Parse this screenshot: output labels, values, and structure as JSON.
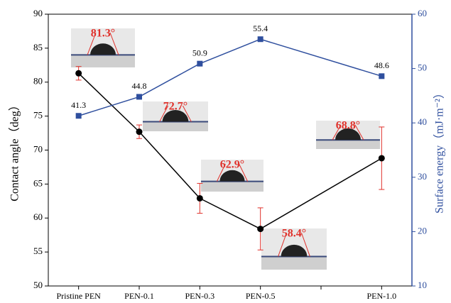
{
  "chart_data": {
    "type": "line",
    "categories": [
      "Pristine PEN",
      "PEN-0.1",
      "PEN-0.3",
      "PEN-0.5",
      null,
      "PEN-1.0"
    ],
    "ylabel": "Contact angle（deg）",
    "y2label": "Surface energy（mJ·m⁻²）",
    "ylim": [
      50,
      90
    ],
    "yticks": [
      50,
      55,
      60,
      65,
      70,
      75,
      80,
      85,
      90
    ],
    "y2lim": [
      10,
      60
    ],
    "y2ticks": [
      10,
      20,
      30,
      40,
      50,
      60
    ],
    "series": [
      {
        "name": "Contact angle",
        "color": "#000000",
        "error_color": "#e0312b",
        "values": [
          81.3,
          72.7,
          62.9,
          58.4,
          null,
          68.8
        ],
        "errors": [
          1.0,
          1.0,
          2.2,
          3.1,
          null,
          4.6
        ],
        "value_labels": [
          "81.3°",
          "72.7°",
          "62.9°",
          "58.4°",
          null,
          "68.8°"
        ]
      },
      {
        "name": "Surface energy",
        "color": "#2f4f9e",
        "axis": "y2",
        "values": [
          41.3,
          44.8,
          50.9,
          55.4,
          null,
          48.6
        ]
      }
    ]
  }
}
